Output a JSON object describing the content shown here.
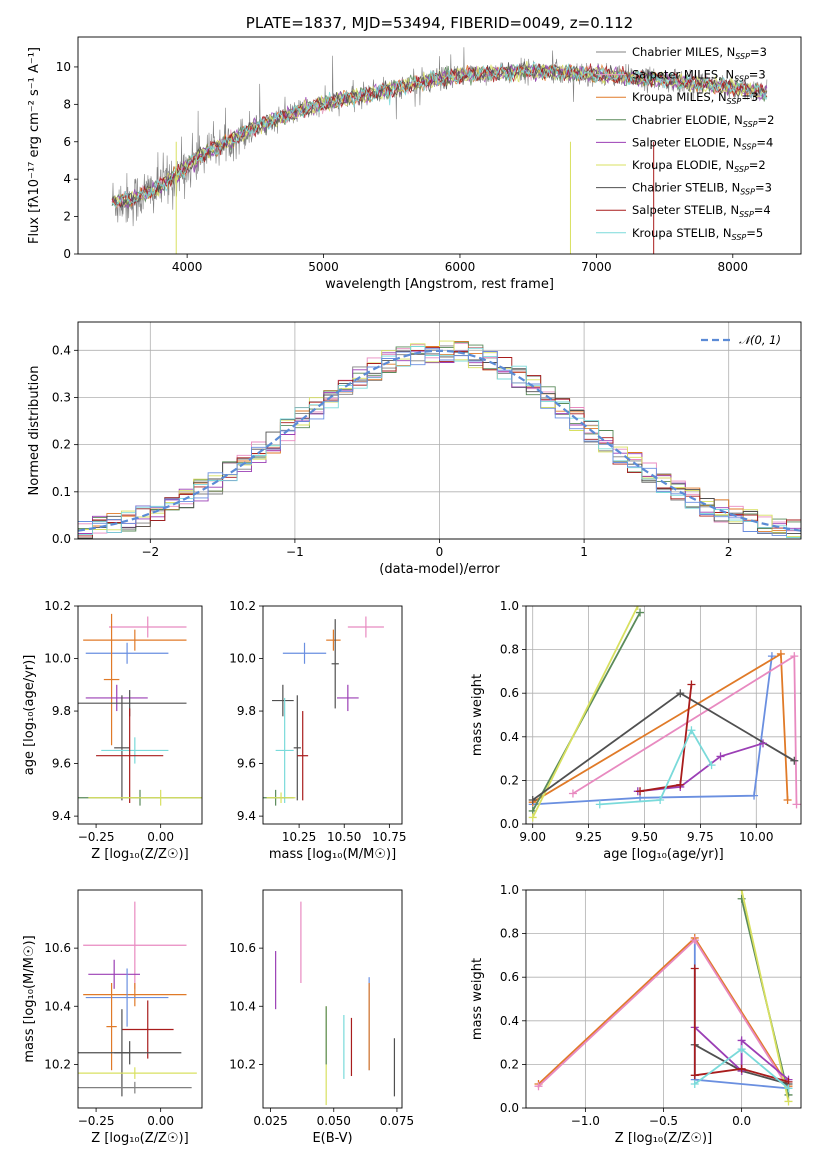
{
  "colors": {
    "Chabrier MILES": "#808080",
    "Salpeter MILES": "#e7a0c0",
    "Kroupa MILES": "#e07a28",
    "Chabrier ELODIE": "#5a8a5a",
    "Salpeter ELODIE": "#9b3fb5",
    "Kroupa ELODIE": "#d8e060",
    "Chabrier STELIB": "#505050",
    "Salpeter STELIB": "#a81c1c",
    "Kroupa STELIB": "#7adada",
    "extra_blue": "#6a8fe0",
    "grid": "#b0b0b0",
    "gauss": "#5b8bd6"
  },
  "chart_data": [
    {
      "type": "line",
      "title": "PLATE=1837, MJD=53494, FIBERID=0049, z=0.112",
      "xlabel": "wavelength [Angstrom, rest frame]",
      "ylabel": "Flux [fλ10⁻¹⁷ erg cm⁻² s⁻¹ A⁻¹]",
      "xlim": [
        3200,
        8500
      ],
      "ylim": [
        0,
        11.6
      ],
      "xticks": [
        4000,
        5000,
        6000,
        7000,
        8000
      ],
      "xtick_labels": [
        "4000",
        "5000",
        "6000",
        "7000",
        "8000"
      ],
      "yticks": [
        0,
        2,
        4,
        6,
        8,
        10
      ],
      "ytick_labels": [
        "0",
        "2",
        "4",
        "6",
        "8",
        "10"
      ],
      "grid": false,
      "legend": "upper right",
      "legend_entries": [
        {
          "base": "Chabrier MILES, N",
          "sub": "SSP",
          "tail": "=3",
          "color": "#808080"
        },
        {
          "base": "Salpeter MILES, N",
          "sub": "SSP",
          "tail": "=3",
          "color": "#e7a0c0"
        },
        {
          "base": "Kroupa MILES, N",
          "sub": "SSP",
          "tail": "=3",
          "color": "#e07a28"
        },
        {
          "base": "Chabrier ELODIE, N",
          "sub": "SSP",
          "tail": "=2",
          "color": "#5a8a5a"
        },
        {
          "base": "Salpeter ELODIE, N",
          "sub": "SSP",
          "tail": "=4",
          "color": "#9b3fb5"
        },
        {
          "base": "Kroupa ELODIE, N",
          "sub": "SSP",
          "tail": "=2",
          "color": "#d8e060"
        },
        {
          "base": "Chabrier STELIB, N",
          "sub": "SSP",
          "tail": "=3",
          "color": "#505050"
        },
        {
          "base": "Salpeter STELIB, N",
          "sub": "SSP",
          "tail": "=4",
          "color": "#a81c1c"
        },
        {
          "base": "Kroupa STELIB, N",
          "sub": "SSP",
          "tail": "=5",
          "color": "#7adada"
        }
      ],
      "continuum": {
        "x": [
          3450,
          3600,
          3800,
          3950,
          4100,
          4300,
          4500,
          4800,
          5100,
          5500,
          5800,
          6100,
          6500,
          7000,
          7500,
          8000,
          8250
        ],
        "y": [
          2.8,
          2.9,
          3.6,
          4.4,
          5.3,
          6.0,
          6.8,
          7.6,
          8.2,
          8.8,
          9.3,
          9.6,
          9.8,
          9.6,
          9.3,
          8.9,
          8.6
        ]
      }
    },
    {
      "type": "step",
      "xlabel": "(data-model)/error",
      "ylabel": "Normed distribution",
      "xlim": [
        -2.5,
        2.5
      ],
      "ylim": [
        0,
        0.46
      ],
      "xticks": [
        -2,
        -1,
        0,
        1,
        2
      ],
      "xtick_labels": [
        "−2",
        "−1",
        "0",
        "1",
        "2"
      ],
      "yticks": [
        0,
        0.1,
        0.2,
        0.3,
        0.4
      ],
      "ytick_labels": [
        "0.0",
        "0.1",
        "0.2",
        "0.3",
        "0.4"
      ],
      "grid": true,
      "legend": "upper right",
      "gauss_label": "𝒩(0, 1)",
      "bin_width": 0.1
    },
    {
      "type": "errorbar",
      "xlabel": "Z [log₁₀(Z/Z☉)]",
      "ylabel": "age  [log₁₀(age/yr)]",
      "xlim": [
        -0.32,
        0.16
      ],
      "ylim": [
        9.37,
        10.2
      ],
      "xticks": [
        -0.25,
        0.0
      ],
      "xtick_labels": [
        "−0.25",
        "0.00"
      ],
      "yticks": [
        9.4,
        9.6,
        9.8,
        10.0,
        10.2
      ],
      "ytick_labels": [
        "9.4",
        "9.6",
        "9.8",
        "10.0",
        "10.2"
      ],
      "points": [
        {
          "x": -0.05,
          "xe": 0.15,
          "y": 10.12,
          "ye": 0.04,
          "c": "#e88ac0"
        },
        {
          "x": -0.1,
          "xe": 0.2,
          "y": 10.07,
          "ye": 0.04,
          "c": "#e07a28"
        },
        {
          "x": -0.13,
          "xe": 0.16,
          "y": 10.02,
          "ye": 0.04,
          "c": "#6a8fe0"
        },
        {
          "x": -0.19,
          "xe": 0.03,
          "y": 9.92,
          "ye": 0.25,
          "c": "#e07a28"
        },
        {
          "x": -0.17,
          "xe": 0.12,
          "y": 9.85,
          "ye": 0.05,
          "c": "#9b3fb5"
        },
        {
          "x": -0.12,
          "xe": 0.22,
          "y": 9.83,
          "ye": 0.05,
          "c": "#505050"
        },
        {
          "x": -0.15,
          "xe": 0.03,
          "y": 9.66,
          "ye": 0.2,
          "c": "#505050"
        },
        {
          "x": -0.1,
          "xe": 0.13,
          "y": 9.65,
          "ye": 0.05,
          "c": "#7adada"
        },
        {
          "x": -0.12,
          "xe": 0.13,
          "y": 9.63,
          "ye": 0.18,
          "c": "#a81c1c"
        },
        {
          "x": -0.08,
          "xe": 0.24,
          "y": 9.47,
          "ye": 0.03,
          "c": "#5a8a5a"
        },
        {
          "x": 0.0,
          "xe": 0.28,
          "y": 9.47,
          "ye": 0.03,
          "c": "#d8e060"
        }
      ]
    },
    {
      "type": "errorbar",
      "xlabel": "mass [log₁₀(M/M☉)]",
      "xlim": [
        10.05,
        10.82
      ],
      "ylim": [
        9.37,
        10.2
      ],
      "xticks": [
        10.25,
        10.5,
        10.75
      ],
      "xtick_labels": [
        "10.25",
        "10.50",
        "10.75"
      ],
      "yticks": [
        9.4,
        9.6,
        9.8,
        10.0,
        10.2
      ],
      "ytick_labels": [
        "9.4",
        "9.6",
        "9.8",
        "10.0",
        "10.2"
      ],
      "points": [
        {
          "x": 10.62,
          "xe": 0.1,
          "y": 10.12,
          "ye": 0.04,
          "c": "#e88ac0"
        },
        {
          "x": 10.44,
          "xe": 0.04,
          "y": 10.07,
          "ye": 0.04,
          "c": "#e07a28"
        },
        {
          "x": 10.28,
          "xe": 0.12,
          "y": 10.02,
          "ye": 0.04,
          "c": "#6a8fe0"
        },
        {
          "x": 10.45,
          "xe": 0.02,
          "y": 9.98,
          "ye": 0.17,
          "c": "#505050"
        },
        {
          "x": 10.52,
          "xe": 0.06,
          "y": 9.85,
          "ye": 0.05,
          "c": "#9b3fb5"
        },
        {
          "x": 10.16,
          "xe": 0.06,
          "y": 9.84,
          "ye": 0.06,
          "c": "#505050"
        },
        {
          "x": 10.17,
          "xe": 0.05,
          "y": 9.65,
          "ye": 0.2,
          "c": "#7adada"
        },
        {
          "x": 10.24,
          "xe": 0.02,
          "y": 9.66,
          "ye": 0.2,
          "c": "#505050"
        },
        {
          "x": 10.27,
          "xe": 0.03,
          "y": 9.63,
          "ye": 0.17,
          "c": "#a81c1c"
        },
        {
          "x": 10.12,
          "xe": 0.1,
          "y": 9.47,
          "ye": 0.03,
          "c": "#5a8a5a"
        },
        {
          "x": 10.15,
          "xe": 0.08,
          "y": 9.47,
          "ye": 0.02,
          "c": "#d8e060"
        }
      ]
    },
    {
      "type": "line",
      "xlabel": "age  [log₁₀(age/yr)]",
      "ylabel": "mass weight",
      "xlim": [
        8.97,
        10.2
      ],
      "ylim": [
        0,
        1.0
      ],
      "xticks": [
        9.0,
        9.25,
        9.5,
        9.75,
        10.0
      ],
      "xtick_labels": [
        "9.00",
        "9.25",
        "9.50",
        "9.75",
        "10.00"
      ],
      "yticks": [
        0,
        0.2,
        0.4,
        0.6,
        0.8,
        1.0
      ],
      "ytick_labels": [
        "0.0",
        "0.2",
        "0.4",
        "0.6",
        "0.8",
        "1.0"
      ],
      "grid": true,
      "series": [
        {
          "c": "#6a8fe0",
          "x": [
            9.0,
            9.48,
            9.99,
            10.07
          ],
          "y": [
            0.09,
            0.12,
            0.13,
            0.77
          ]
        },
        {
          "c": "#e07a28",
          "x": [
            9.0,
            10.11,
            10.14
          ],
          "y": [
            0.1,
            0.78,
            0.11
          ]
        },
        {
          "c": "#e88ac0",
          "x": [
            9.18,
            10.17,
            10.18
          ],
          "y": [
            0.14,
            0.77,
            0.09
          ]
        },
        {
          "c": "#5a8a5a",
          "x": [
            9.0,
            9.48
          ],
          "y": [
            0.06,
            0.97
          ]
        },
        {
          "c": "#d8e060",
          "x": [
            9.0,
            9.47
          ],
          "y": [
            0.03,
            1.0
          ]
        },
        {
          "c": "#505050",
          "x": [
            9.0,
            9.66,
            10.17
          ],
          "y": [
            0.11,
            0.6,
            0.29
          ]
        },
        {
          "c": "#9b3fb5",
          "x": [
            9.47,
            9.66,
            9.84,
            10.03
          ],
          "y": [
            0.15,
            0.17,
            0.31,
            0.37
          ]
        },
        {
          "c": "#a81c1c",
          "x": [
            9.48,
            9.66,
            9.71
          ],
          "y": [
            0.15,
            0.18,
            0.64
          ]
        },
        {
          "c": "#7adada",
          "x": [
            9.3,
            9.57,
            9.71,
            9.8
          ],
          "y": [
            0.09,
            0.11,
            0.43,
            0.27
          ]
        }
      ]
    },
    {
      "type": "errorbar",
      "xlabel": "Z [log₁₀(Z/Z☉)]",
      "ylabel": "mass [log₁₀(M/M☉)]",
      "xlim": [
        -0.32,
        0.16
      ],
      "ylim": [
        10.05,
        10.8
      ],
      "xticks": [
        -0.25,
        0.0
      ],
      "xtick_labels": [
        "−0.25",
        "0.00"
      ],
      "yticks": [
        10.2,
        10.4,
        10.6
      ],
      "ytick_labels": [
        "10.2",
        "10.4",
        "10.6"
      ],
      "points": [
        {
          "x": -0.1,
          "xe": 0.2,
          "y": 10.61,
          "ye": 0.15,
          "c": "#e88ac0"
        },
        {
          "x": -0.18,
          "xe": 0.1,
          "y": 10.51,
          "ye": 0.05,
          "c": "#9b3fb5"
        },
        {
          "x": -0.1,
          "xe": 0.2,
          "y": 10.44,
          "ye": 0.04,
          "c": "#e07a28"
        },
        {
          "x": -0.13,
          "xe": 0.16,
          "y": 10.43,
          "ye": 0.1,
          "c": "#6a8fe0"
        },
        {
          "x": -0.19,
          "xe": 0.02,
          "y": 10.33,
          "ye": 0.15,
          "c": "#e07a28"
        },
        {
          "x": -0.05,
          "xe": 0.1,
          "y": 10.32,
          "ye": 0.1,
          "c": "#a81c1c"
        },
        {
          "x": -0.12,
          "xe": 0.2,
          "y": 10.24,
          "ye": 0.04,
          "c": "#505050"
        },
        {
          "x": -0.15,
          "xe": 0.03,
          "y": 10.24,
          "ye": 0.15,
          "c": "#505050"
        },
        {
          "x": -0.1,
          "xe": 0.24,
          "y": 10.17,
          "ye": 0.02,
          "c": "#d8e060"
        },
        {
          "x": -0.1,
          "xe": 0.22,
          "y": 10.12,
          "ye": 0.02,
          "c": "#808080"
        }
      ]
    },
    {
      "type": "errorbar",
      "xlabel": "E(B-V)",
      "xlim": [
        0.022,
        0.077
      ],
      "ylim": [
        10.05,
        10.8
      ],
      "xticks": [
        0.025,
        0.05,
        0.075
      ],
      "xtick_labels": [
        "0.025",
        "0.050",
        "0.075"
      ],
      "yticks": [
        10.2,
        10.4,
        10.6
      ],
      "ytick_labels": [
        "10.2",
        "10.4",
        "10.6"
      ],
      "points": [
        {
          "x": 0.027,
          "y": 10.49,
          "ye": 0.1,
          "c": "#9b3fb5"
        },
        {
          "x": 0.037,
          "y": 10.62,
          "ye": 0.14,
          "c": "#e88ac0"
        },
        {
          "x": 0.047,
          "y": 10.23,
          "ye": 0.17,
          "c": "#d8e060"
        },
        {
          "x": 0.047,
          "y": 10.3,
          "ye": 0.1,
          "c": "#5a8a5a"
        },
        {
          "x": 0.054,
          "y": 10.26,
          "ye": 0.11,
          "c": "#7adada"
        },
        {
          "x": 0.057,
          "y": 10.26,
          "ye": 0.1,
          "c": "#a81c1c"
        },
        {
          "x": 0.064,
          "y": 10.34,
          "ye": 0.16,
          "c": "#6a8fe0"
        },
        {
          "x": 0.064,
          "y": 10.33,
          "ye": 0.15,
          "c": "#e07a28"
        },
        {
          "x": 0.074,
          "y": 10.19,
          "ye": 0.1,
          "c": "#505050"
        }
      ]
    },
    {
      "type": "line",
      "xlabel": "Z [log₁₀(Z/Z☉)]",
      "ylabel": "mass weight",
      "xlim": [
        -1.38,
        0.38
      ],
      "ylim": [
        0,
        1.0
      ],
      "xticks": [
        -1.0,
        -0.5,
        0.0
      ],
      "xtick_labels": [
        "−1.0",
        "−0.5",
        "0.0"
      ],
      "yticks": [
        0,
        0.2,
        0.4,
        0.6,
        0.8,
        1.0
      ],
      "ytick_labels": [
        "0.0",
        "0.2",
        "0.4",
        "0.6",
        "0.8",
        "1.0"
      ],
      "grid": true,
      "series": [
        {
          "c": "#6a8fe0",
          "x": [
            -0.3,
            -0.3,
            0.3
          ],
          "y": [
            0.77,
            0.13,
            0.09
          ]
        },
        {
          "c": "#e07a28",
          "x": [
            -1.3,
            -0.3,
            0.3
          ],
          "y": [
            0.11,
            0.78,
            0.1
          ]
        },
        {
          "c": "#e88ac0",
          "x": [
            -1.3,
            -0.3,
            0.3
          ],
          "y": [
            0.1,
            0.77,
            0.09
          ]
        },
        {
          "c": "#5a8a5a",
          "x": [
            0.0,
            0.3
          ],
          "y": [
            0.96,
            0.06
          ]
        },
        {
          "c": "#d8e060",
          "x": [
            0.0,
            0.3
          ],
          "y": [
            1.0,
            0.03
          ]
        },
        {
          "c": "#505050",
          "x": [
            -0.3,
            0.0,
            0.3
          ],
          "y": [
            0.29,
            0.17,
            0.11
          ]
        },
        {
          "c": "#9b3fb5",
          "x": [
            -0.3,
            0.0,
            0.0,
            0.3
          ],
          "y": [
            0.37,
            0.17,
            0.31,
            0.13
          ]
        },
        {
          "c": "#a81c1c",
          "x": [
            -0.3,
            -0.3,
            0.0,
            0.3
          ],
          "y": [
            0.64,
            0.15,
            0.18,
            0.12
          ]
        },
        {
          "c": "#7adada",
          "x": [
            -0.3,
            0.0,
            0.3
          ],
          "y": [
            0.11,
            0.27,
            0.09
          ]
        }
      ]
    }
  ]
}
